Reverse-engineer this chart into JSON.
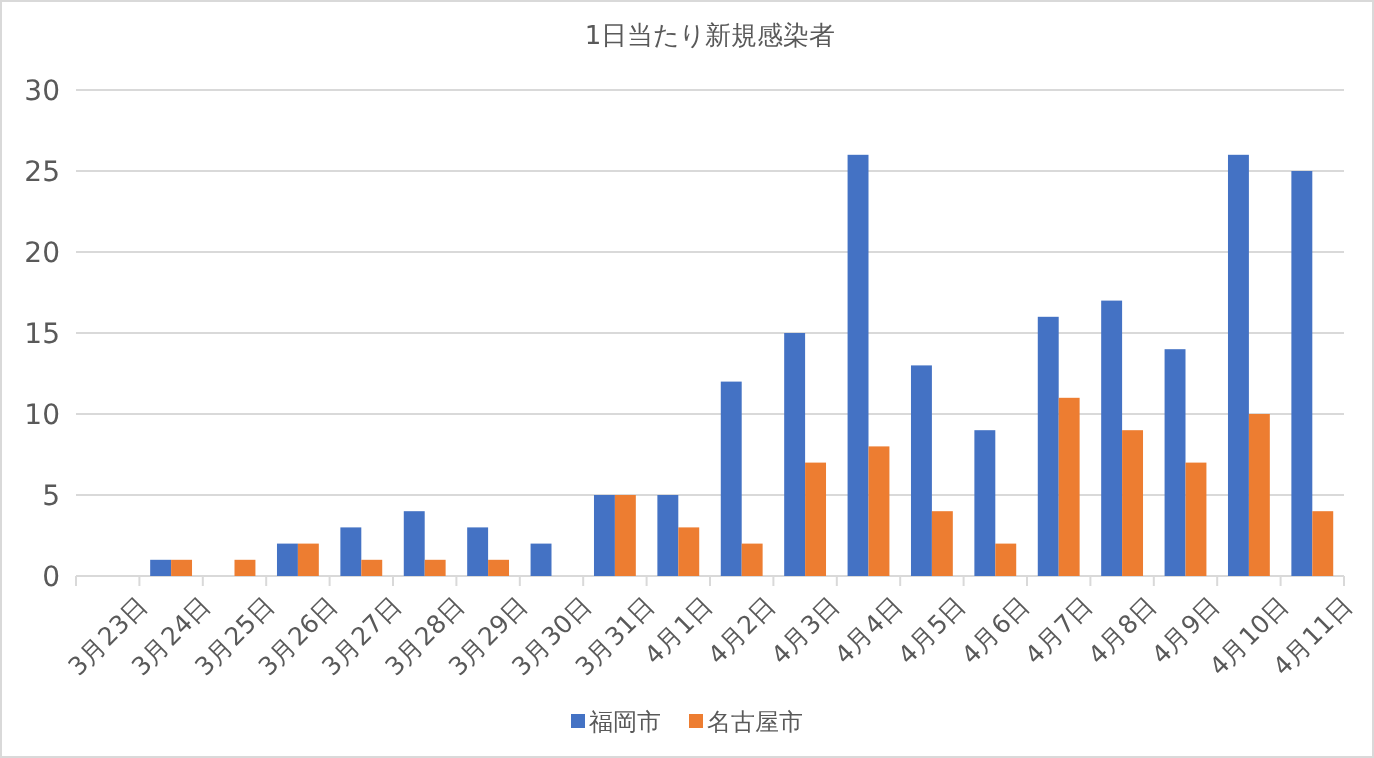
{
  "chart_data": {
    "type": "bar",
    "title": "1日当たり新規感染者",
    "categories": [
      "3月23日",
      "3月24日",
      "3月25日",
      "3月26日",
      "3月27日",
      "3月28日",
      "3月29日",
      "3月30日",
      "3月31日",
      "4月1日",
      "4月2日",
      "4月3日",
      "4月4日",
      "4月5日",
      "4月6日",
      "4月7日",
      "4月8日",
      "4月9日",
      "4月10日",
      "4月11日"
    ],
    "series": [
      {
        "name": "福岡市",
        "color": "#4472c4",
        "values": [
          0,
          1,
          0,
          2,
          3,
          4,
          3,
          2,
          5,
          5,
          12,
          15,
          26,
          13,
          9,
          16,
          17,
          14,
          26,
          25
        ]
      },
      {
        "name": "名古屋市",
        "color": "#ed7d31",
        "values": [
          0,
          1,
          1,
          2,
          1,
          1,
          1,
          0,
          5,
          3,
          2,
          7,
          8,
          4,
          2,
          11,
          9,
          7,
          10,
          4
        ]
      }
    ],
    "ylim": [
      0,
      30
    ],
    "yticks": [
      0,
      5,
      10,
      15,
      20,
      25,
      30
    ],
    "grid": "y",
    "legend": "bottom"
  }
}
